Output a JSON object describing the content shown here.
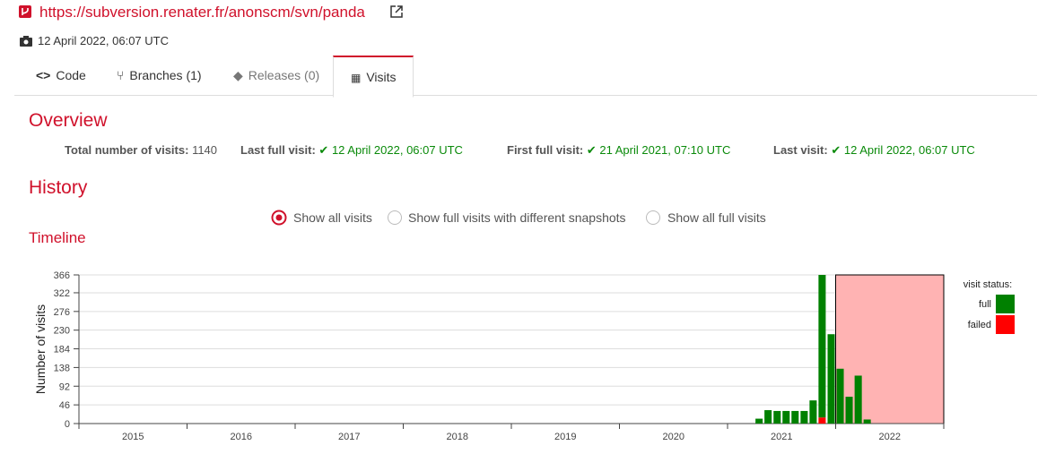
{
  "header": {
    "url": "https://subversion.renater.fr/anonscm/svn/panda",
    "date": "12 April 2022, 06:07 UTC"
  },
  "tabs": [
    "Code",
    "Branches (1)",
    "Releases (0)",
    "Visits"
  ],
  "overview": {
    "title": "Overview",
    "stats": [
      {
        "label": "Total number of visits:",
        "value": 1140
      },
      {
        "label": "Last full visit:",
        "value": "12 April 2022, 06:07 UTC"
      },
      {
        "label": "First full visit:",
        "value": "21 April 2021, 07:10 UTC"
      },
      {
        "label": "Last visit:",
        "value": "12 April 2022, 06:07 UTC"
      }
    ]
  },
  "history": {
    "title": "History",
    "options": [
      "Show all visits",
      "Show full visits with different snapshots",
      "Show all full visits"
    ]
  },
  "chart_data": {
    "type": "bar",
    "title": "Timeline",
    "y_label": "Number of visits",
    "legend_title": "visit status:",
    "x": [
      2021.25,
      2021.333,
      2021.417,
      2021.5,
      2021.583,
      2021.667,
      2021.75,
      2021.833,
      2021.917,
      2022,
      2022.083,
      2022.167,
      2022.25
    ],
    "series": [
      {
        "name": "full",
        "color": "#008000",
        "values": [
          12,
          33,
          31,
          31,
          31,
          31,
          57,
          351,
          220,
          135,
          66,
          118,
          10
        ]
      },
      {
        "name": "failed",
        "color": "#ff0000",
        "values": [
          0,
          0,
          0,
          0,
          0,
          0,
          0,
          15,
          0,
          0,
          0,
          0,
          0
        ]
      }
    ],
    "xlim": [
      2015,
      2023
    ],
    "xticks": [
      2015,
      2016,
      2017,
      2018,
      2019,
      2020,
      2021,
      2022
    ],
    "ylim": [
      0,
      366
    ],
    "yticks": [
      0,
      46,
      92,
      138,
      184,
      230,
      276,
      322,
      366
    ],
    "grid": true,
    "stacked": true,
    "highlight_year": 2022,
    "legend": "right"
  }
}
